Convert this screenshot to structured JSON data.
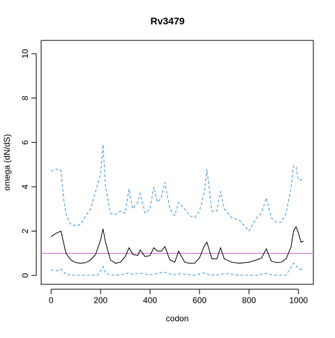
{
  "chart_data": {
    "type": "line",
    "title": "Rv3479",
    "xlabel": "codon",
    "ylabel": "omega (dN/dS)",
    "xlim": [
      -40,
      1060
    ],
    "ylim": [
      -0.4,
      10.6
    ],
    "xticks": [
      0,
      200,
      400,
      600,
      800,
      1000
    ],
    "yticks": [
      0,
      2,
      4,
      6,
      8,
      10
    ],
    "grid": false,
    "reference_line": {
      "y": 1,
      "color": "#cc66cc"
    },
    "series": [
      {
        "style": "solid",
        "color": "#000000",
        "x": [
          0,
          20,
          40,
          60,
          80,
          100,
          120,
          140,
          160,
          180,
          200,
          210,
          220,
          240,
          260,
          280,
          300,
          315,
          330,
          350,
          360,
          380,
          400,
          415,
          430,
          445,
          460,
          480,
          500,
          515,
          540,
          560,
          580,
          600,
          620,
          630,
          650,
          670,
          685,
          700,
          730,
          760,
          800,
          830,
          850,
          870,
          890,
          910,
          930,
          950,
          970,
          980,
          990,
          1000,
          1010,
          1020
        ],
        "y": [
          1.75,
          1.9,
          2.0,
          1.0,
          0.7,
          0.58,
          0.55,
          0.58,
          0.7,
          0.95,
          1.6,
          2.1,
          1.5,
          0.7,
          0.55,
          0.6,
          0.85,
          1.25,
          0.95,
          0.9,
          1.15,
          0.85,
          0.9,
          1.25,
          1.1,
          1.1,
          1.3,
          0.7,
          0.6,
          1.1,
          0.6,
          0.55,
          0.55,
          0.8,
          1.35,
          1.5,
          0.75,
          0.75,
          1.25,
          0.75,
          0.6,
          0.55,
          0.6,
          0.7,
          0.78,
          1.2,
          0.65,
          0.58,
          0.6,
          0.75,
          1.3,
          2.0,
          2.2,
          1.9,
          1.5,
          1.55
        ]
      },
      {
        "style": "dashed",
        "color": "#3399dd",
        "x": [
          0,
          20,
          40,
          50,
          60,
          70,
          80,
          100,
          120,
          140,
          160,
          180,
          200,
          210,
          220,
          240,
          260,
          280,
          300,
          315,
          330,
          350,
          360,
          380,
          400,
          415,
          430,
          445,
          460,
          480,
          500,
          515,
          540,
          560,
          580,
          600,
          620,
          630,
          650,
          670,
          685,
          700,
          730,
          760,
          800,
          830,
          850,
          870,
          890,
          910,
          930,
          950,
          970,
          980,
          990,
          1000,
          1010,
          1020
        ],
        "y": [
          4.7,
          4.8,
          4.75,
          3.5,
          2.8,
          2.5,
          2.3,
          2.25,
          2.3,
          2.7,
          3.0,
          3.8,
          4.6,
          5.9,
          4.0,
          2.8,
          2.75,
          2.9,
          2.8,
          3.9,
          3.0,
          3.3,
          3.7,
          2.8,
          3.0,
          4.0,
          3.3,
          3.5,
          4.2,
          3.0,
          2.7,
          3.3,
          3.0,
          2.7,
          2.6,
          2.9,
          3.8,
          4.8,
          2.9,
          2.9,
          3.8,
          3.0,
          2.6,
          2.5,
          2.0,
          2.6,
          2.8,
          3.5,
          2.6,
          2.4,
          2.4,
          2.8,
          4.0,
          4.95,
          4.9,
          4.3,
          4.3,
          4.4
        ]
      },
      {
        "style": "dashed",
        "color": "#3399dd",
        "x": [
          0,
          20,
          40,
          60,
          80,
          100,
          150,
          190,
          210,
          220,
          240,
          280,
          315,
          330,
          360,
          400,
          430,
          460,
          490,
          520,
          580,
          620,
          640,
          680,
          700,
          760,
          830,
          870,
          900,
          950,
          980,
          990,
          1000,
          1020
        ],
        "y": [
          0.25,
          0.2,
          0.3,
          0.05,
          0.02,
          0.01,
          0.01,
          0.02,
          0.4,
          0.1,
          0.02,
          0.02,
          0.12,
          0.05,
          0.1,
          0.03,
          0.1,
          0.15,
          0.02,
          0.08,
          0.01,
          0.12,
          0.02,
          0.02,
          0.1,
          0.01,
          0.01,
          0.1,
          0.01,
          0.02,
          0.55,
          0.45,
          0.3,
          0.25
        ]
      }
    ]
  }
}
